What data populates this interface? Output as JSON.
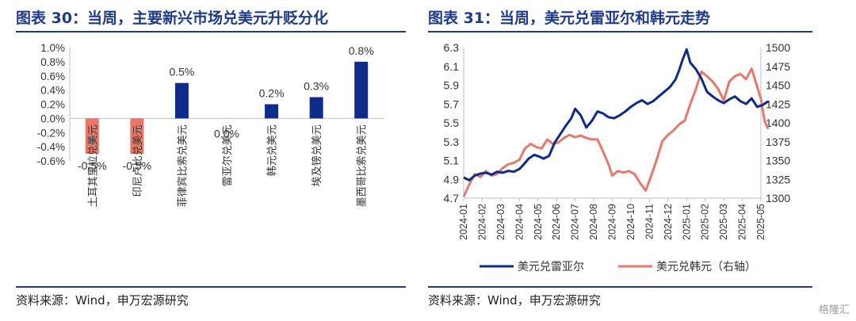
{
  "left": {
    "title": "图表 30：当周，主要新兴市场兑美元升贬分化",
    "source": "资料来源：Wind，申万宏源研究"
  },
  "right": {
    "title": "图表 31：当周，美元兑雷亚尔和韩元走势",
    "source": "资料来源：Wind，申万宏源研究"
  },
  "colors": {
    "navy": "#0e2a8a",
    "salmon": "#e8786a",
    "title": "#1f3a8a"
  },
  "watermark": "格隆汇",
  "chart_data": [
    {
      "type": "bar",
      "categories": [
        "土耳其里拉兑美元",
        "印尼卢比兑美元",
        "菲律宾比索兑美元",
        "雷亚尔兑美元",
        "韩元兑美元",
        "埃及镑兑美元",
        "墨西哥比索兑美元"
      ],
      "values": [
        -0.5,
        -0.5,
        0.5,
        0.0,
        0.2,
        0.3,
        0.8
      ],
      "value_labels": [
        "-0.5%",
        "-0.5%",
        "0.5%",
        "0.0%",
        "0.2%",
        "0.3%",
        "0.8%"
      ],
      "ylim": [
        -0.6,
        1.0
      ],
      "yticks": [
        "1.0%",
        "0.8%",
        "0.6%",
        "0.4%",
        "0.2%",
        "0.0%",
        "-0.2%",
        "-0.4%",
        "-0.6%"
      ],
      "grid": false
    },
    {
      "type": "line",
      "x_ticks": [
        "2024-01",
        "2024-02",
        "2024-03",
        "2024-04",
        "2024-05",
        "2024-06",
        "2024-07",
        "2024-08",
        "2024-09",
        "2024-10",
        "2024-11",
        "2024-12",
        "2025-01",
        "2025-02",
        "2025-03",
        "2025-04",
        "2025-05"
      ],
      "ylim_left": [
        4.7,
        6.3
      ],
      "yticks_left": [
        "6.3",
        "6.1",
        "5.9",
        "5.7",
        "5.5",
        "5.3",
        "5.1",
        "4.9",
        "4.7"
      ],
      "ylim_right": [
        1300,
        1500
      ],
      "yticks_right": [
        "1500",
        "1475",
        "1450",
        "1425",
        "1400",
        "1375",
        "1350",
        "1325",
        "1300"
      ],
      "legend_placement": "bottom",
      "grid": false,
      "series": [
        {
          "name": "美元兑雷亚尔",
          "axis": "left",
          "x": [
            0,
            0.3,
            0.6,
            0.9,
            1.2,
            1.5,
            1.8,
            2.1,
            2.4,
            2.7,
            3.0,
            3.2,
            3.5,
            3.8,
            4.1,
            4.3,
            4.6,
            4.9,
            5.2,
            5.5,
            5.8,
            6.0,
            6.3,
            6.6,
            6.9,
            7.2,
            7.5,
            7.8,
            8.1,
            8.4,
            8.7,
            9.0,
            9.3,
            9.6,
            9.9,
            10.2,
            10.5,
            10.8,
            11.1,
            11.4,
            11.6,
            11.8,
            12.0,
            12.2,
            12.5,
            12.8,
            13.1,
            13.4,
            13.7,
            14.0,
            14.3,
            14.6,
            14.9,
            15.2,
            15.5,
            15.8,
            16.1,
            16.4
          ],
          "values": [
            4.92,
            4.89,
            4.94,
            4.96,
            4.97,
            4.95,
            4.98,
            4.97,
            4.99,
            4.98,
            5.01,
            5.05,
            5.12,
            5.16,
            5.14,
            5.12,
            5.15,
            5.29,
            5.38,
            5.47,
            5.55,
            5.65,
            5.58,
            5.45,
            5.52,
            5.62,
            5.6,
            5.56,
            5.55,
            5.58,
            5.62,
            5.67,
            5.71,
            5.74,
            5.7,
            5.73,
            5.78,
            5.83,
            5.88,
            5.96,
            6.06,
            6.18,
            6.28,
            6.14,
            6.07,
            5.97,
            5.83,
            5.78,
            5.74,
            5.71,
            5.75,
            5.78,
            5.73,
            5.7,
            5.76,
            5.67,
            5.69,
            5.73
          ]
        },
        {
          "name": "美元兑韩元（右轴）",
          "axis": "right",
          "x": [
            0,
            0.3,
            0.6,
            0.9,
            1.2,
            1.5,
            1.8,
            2.1,
            2.4,
            2.7,
            3.0,
            3.3,
            3.6,
            3.9,
            4.2,
            4.5,
            4.8,
            5.1,
            5.4,
            5.7,
            6.0,
            6.3,
            6.6,
            6.9,
            7.2,
            7.5,
            7.8,
            8.0,
            8.3,
            8.6,
            8.9,
            9.2,
            9.5,
            9.8,
            10.1,
            10.4,
            10.7,
            11.0,
            11.3,
            11.6,
            11.9,
            12.2,
            12.5,
            12.8,
            13.1,
            13.4,
            13.7,
            14.0,
            14.3,
            14.6,
            14.9,
            15.2,
            15.5,
            15.8,
            16.0,
            16.2,
            16.4
          ],
          "values": [
            1302,
            1318,
            1332,
            1328,
            1336,
            1330,
            1332,
            1340,
            1345,
            1347,
            1351,
            1366,
            1372,
            1368,
            1366,
            1378,
            1372,
            1374,
            1380,
            1384,
            1381,
            1383,
            1380,
            1378,
            1378,
            1362,
            1345,
            1330,
            1336,
            1334,
            1336,
            1332,
            1320,
            1310,
            1330,
            1352,
            1376,
            1384,
            1390,
            1398,
            1403,
            1425,
            1445,
            1468,
            1462,
            1455,
            1445,
            1430,
            1455,
            1462,
            1465,
            1458,
            1472,
            1448,
            1432,
            1402,
            1392
          ]
        }
      ]
    }
  ]
}
